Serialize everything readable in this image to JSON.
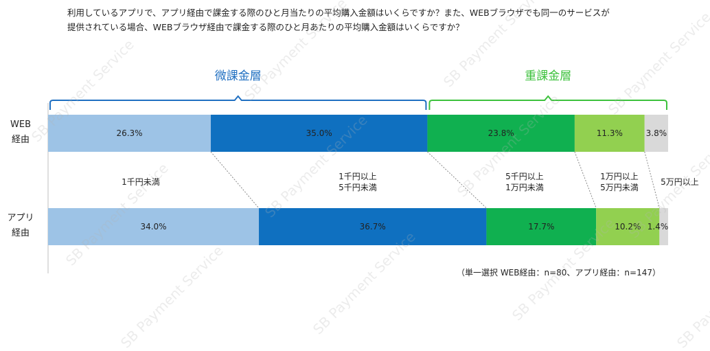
{
  "question": {
    "line1": "利用しているアプリで、アプリ経由で課金する際のひと月当たりの平均購入金額はいくらですか？また、WEBブラウザでも同一のサービスが",
    "line2": "提供されている場合、WEBブラウザ経由で課金する際のひと月あたりの平均購入金額はいくらですか？"
  },
  "footnote": "（単一選択 WEB経由：n=80、アプリ経由：n=147）",
  "watermark": "SB Payment Service",
  "colors": {
    "tier_small": "#1f6fc1",
    "tier_heavy": "#3cc13c",
    "guide": "#888888"
  },
  "chart_data": {
    "type": "bar",
    "orientation": "horizontal",
    "stacked": true,
    "normalized": true,
    "rows": [
      {
        "label_line1": "WEB",
        "label_line2": "経由",
        "values": [
          26.3,
          35.0,
          23.8,
          11.3,
          3.8
        ],
        "value_labels": [
          "26.3%",
          "35.0%",
          "23.8%",
          "11.3%",
          "3.8%"
        ]
      },
      {
        "label_line1": "アプリ",
        "label_line2": "経由",
        "values": [
          34.0,
          36.7,
          17.7,
          10.2,
          1.4
        ],
        "value_labels": [
          "34.0%",
          "36.7%",
          "17.7%",
          "10.2%",
          "1.4%"
        ]
      }
    ],
    "categories": [
      {
        "lines": [
          "1千円未満"
        ],
        "color": "#9dc3e6"
      },
      {
        "lines": [
          "1千円以上",
          "5千円未満"
        ],
        "color": "#0f70c0"
      },
      {
        "lines": [
          "5千円以上",
          "1万円未満"
        ],
        "color": "#10b050"
      },
      {
        "lines": [
          "1万円以上",
          "5万円未満"
        ],
        "color": "#92d050"
      },
      {
        "lines": [
          "5万円以上"
        ],
        "color": "#d9d9d9"
      }
    ],
    "groups": [
      {
        "label": "微課金層",
        "from": 0,
        "to": 1,
        "color": "#1f6fc1"
      },
      {
        "label": "重課金層",
        "from": 2,
        "to": 4,
        "color": "#3cc13c"
      }
    ]
  }
}
